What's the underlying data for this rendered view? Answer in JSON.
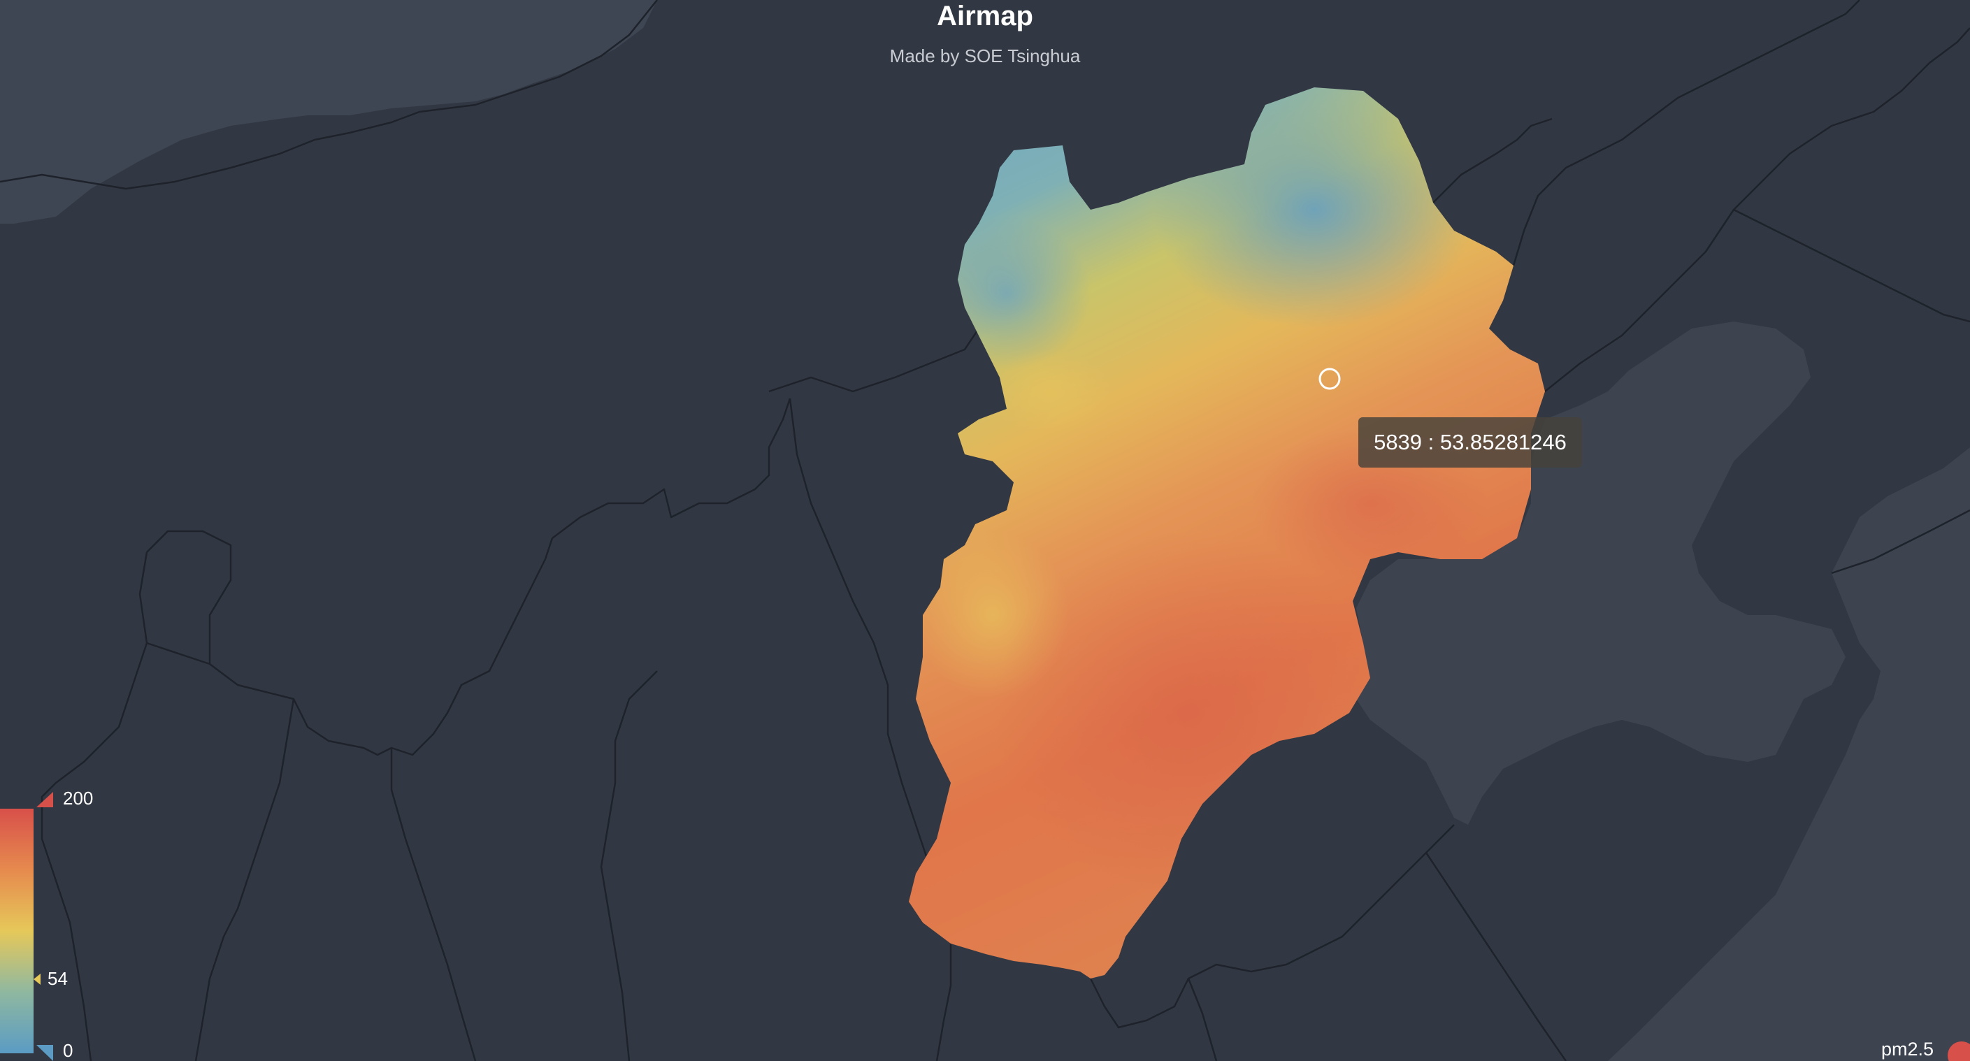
{
  "title": "Airmap",
  "subtitle": "Made by SOE Tsinghua",
  "tooltip": {
    "text": "5839 : 53.85281246",
    "grid_id": 5839,
    "value": 53.85281246
  },
  "visual_map": {
    "max_label": "200",
    "current_label": "54",
    "min_label": "0",
    "max": 200,
    "min": 0,
    "current": 54,
    "colors": [
      "#5b9bc4",
      "#8fb8a0",
      "#e6c85a",
      "#e89050",
      "#d8504a"
    ]
  },
  "legend": {
    "series_name": "pm2.5",
    "color": "#d8504a"
  },
  "colors": {
    "background": "#323843",
    "sea": "#3d4450",
    "border": "#1e222a"
  }
}
